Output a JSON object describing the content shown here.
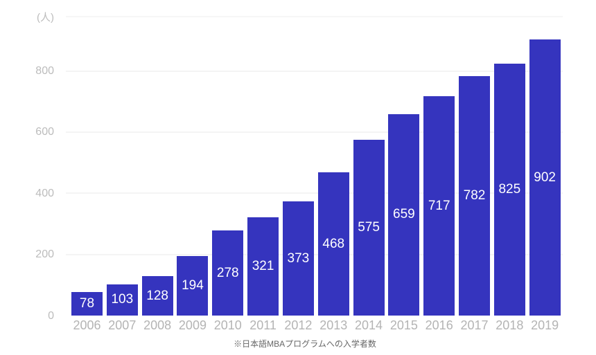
{
  "chart_data": {
    "type": "bar",
    "title": "",
    "unit_label": "(人)",
    "caption": "※日本語MBAプログラムへの入学者数",
    "categories": [
      "2006",
      "2007",
      "2008",
      "2009",
      "2010",
      "2011",
      "2012",
      "2013",
      "2014",
      "2015",
      "2016",
      "2017",
      "2018",
      "2019"
    ],
    "values": [
      78,
      103,
      128,
      194,
      278,
      321,
      373,
      468,
      575,
      659,
      717,
      782,
      825,
      902
    ],
    "xlabel": "",
    "ylabel": "(人)",
    "ylim": [
      0,
      980
    ],
    "yticks": [
      0,
      200,
      400,
      600,
      800
    ],
    "grid": true,
    "legend": "none",
    "bar_color": "#3534be",
    "value_label_color": "#ffffff",
    "axis_text_color": "#b4b4b4",
    "gridline_color": "#f4f4f4",
    "caption_color": "#666666"
  }
}
